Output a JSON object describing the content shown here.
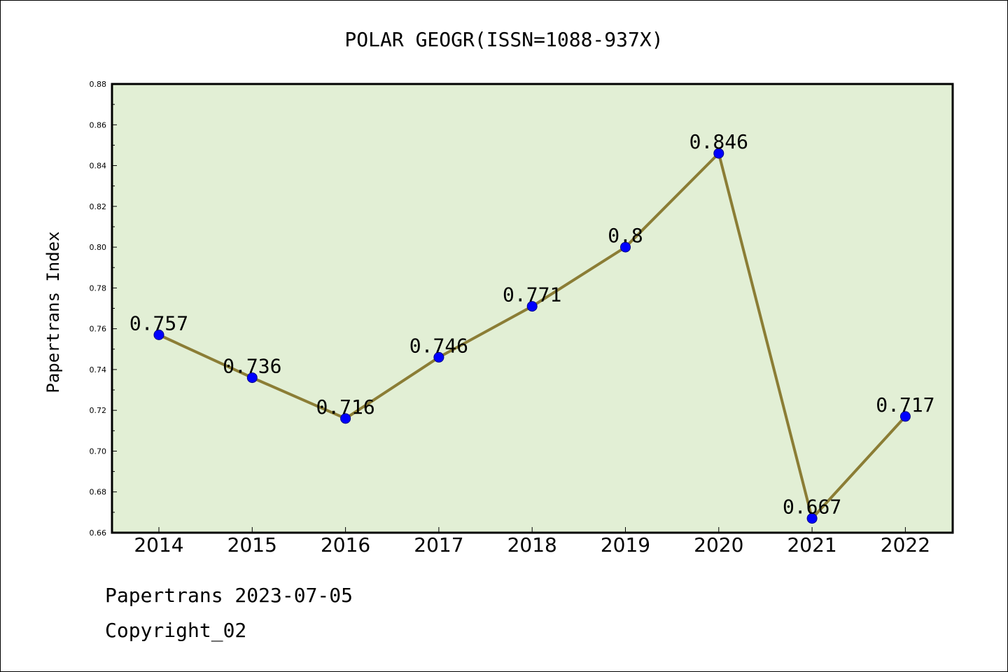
{
  "chart_data": {
    "type": "line",
    "title": "POLAR GEOGR(ISSN=1088-937X)",
    "xlabel": "",
    "ylabel": "Papertrans Index",
    "categories": [
      "2014",
      "2015",
      "2016",
      "2017",
      "2018",
      "2019",
      "2020",
      "2021",
      "2022"
    ],
    "series": [
      {
        "values": [
          0.757,
          0.736,
          0.716,
          0.746,
          0.771,
          0.8,
          0.846,
          0.667,
          0.717
        ],
        "data_labels": [
          "0.757",
          "0.736",
          "0.716",
          "0.746",
          "0.771",
          "0.8",
          "0.846",
          "0.667",
          "0.717"
        ],
        "line_color": "#8b7d35",
        "marker_color": "#0000ff"
      }
    ],
    "ylim": [
      0.66,
      0.88
    ],
    "yticks": [
      0.66,
      0.68,
      0.7,
      0.72,
      0.74,
      0.76,
      0.78,
      0.8,
      0.82,
      0.84,
      0.86,
      0.88
    ],
    "ytick_labels": [
      "0.66",
      "0.68",
      "0.70",
      "0.72",
      "0.74",
      "0.76",
      "0.78",
      "0.80",
      "0.82",
      "0.84",
      "0.86",
      "0.88"
    ],
    "plot_background": "#e2efd5",
    "grid": false,
    "legend": "none"
  },
  "footer": {
    "line1": "Papertrans 2023-07-05",
    "line2": "Copyright_02"
  }
}
